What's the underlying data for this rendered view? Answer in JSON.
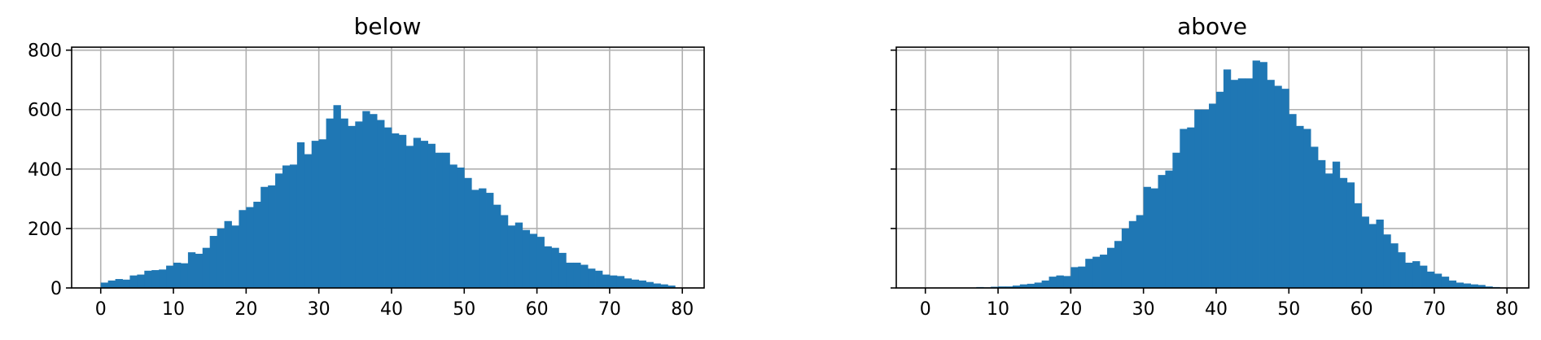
{
  "chart_data": [
    {
      "type": "bar",
      "title": "below",
      "xlabel": "",
      "ylabel": "",
      "bin_width": 1,
      "xlim": [
        -4,
        83
      ],
      "ylim": [
        0,
        810
      ],
      "xticks": [
        0,
        10,
        20,
        30,
        40,
        50,
        60,
        70,
        80
      ],
      "yticks": [
        0,
        200,
        400,
        600,
        800
      ],
      "grid": true,
      "color": "#1f77b4",
      "x": [
        0,
        1,
        2,
        3,
        4,
        5,
        6,
        7,
        8,
        9,
        10,
        11,
        12,
        13,
        14,
        15,
        16,
        17,
        18,
        19,
        20,
        21,
        22,
        23,
        24,
        25,
        26,
        27,
        28,
        29,
        30,
        31,
        32,
        33,
        34,
        35,
        36,
        37,
        38,
        39,
        40,
        41,
        42,
        43,
        44,
        45,
        46,
        47,
        48,
        49,
        50,
        51,
        52,
        53,
        54,
        55,
        56,
        57,
        58,
        59,
        60,
        61,
        62,
        63,
        64,
        65,
        66,
        67,
        68,
        69,
        70,
        71,
        72,
        73,
        74,
        75,
        76,
        77,
        78
      ],
      "values": [
        18,
        25,
        30,
        28,
        42,
        45,
        58,
        60,
        62,
        75,
        85,
        83,
        120,
        115,
        135,
        175,
        200,
        225,
        210,
        262,
        272,
        290,
        340,
        345,
        385,
        412,
        415,
        490,
        450,
        495,
        500,
        570,
        615,
        570,
        545,
        560,
        595,
        585,
        565,
        540,
        520,
        515,
        478,
        505,
        495,
        485,
        455,
        455,
        415,
        405,
        370,
        330,
        335,
        320,
        280,
        245,
        210,
        220,
        195,
        182,
        172,
        140,
        135,
        118,
        85,
        85,
        78,
        65,
        58,
        45,
        42,
        40,
        32,
        28,
        25,
        20,
        15,
        12,
        8
      ]
    },
    {
      "type": "bar",
      "title": "above",
      "xlabel": "",
      "ylabel": "",
      "bin_width": 1,
      "xlim": [
        -4,
        83
      ],
      "ylim": [
        0,
        810
      ],
      "xticks": [
        0,
        10,
        20,
        30,
        40,
        50,
        60,
        70,
        80
      ],
      "yticks": [
        0,
        200,
        400,
        600,
        800
      ],
      "grid": true,
      "color": "#1f77b4",
      "x": [
        0,
        1,
        2,
        3,
        4,
        5,
        6,
        7,
        8,
        9,
        10,
        11,
        12,
        13,
        14,
        15,
        16,
        17,
        18,
        19,
        20,
        21,
        22,
        23,
        24,
        25,
        26,
        27,
        28,
        29,
        30,
        31,
        32,
        33,
        34,
        35,
        36,
        37,
        38,
        39,
        40,
        41,
        42,
        43,
        44,
        45,
        46,
        47,
        48,
        49,
        50,
        51,
        52,
        53,
        54,
        55,
        56,
        57,
        58,
        59,
        60,
        61,
        62,
        63,
        64,
        65,
        66,
        67,
        68,
        69,
        70,
        71,
        72,
        73,
        74,
        75,
        76,
        77,
        78
      ],
      "values": [
        0,
        0,
        0,
        0,
        0,
        0,
        1,
        3,
        2,
        4,
        5,
        5,
        8,
        12,
        14,
        18,
        25,
        38,
        42,
        40,
        70,
        72,
        98,
        105,
        112,
        135,
        158,
        200,
        225,
        245,
        340,
        335,
        380,
        395,
        455,
        535,
        540,
        600,
        600,
        620,
        660,
        735,
        700,
        705,
        705,
        765,
        760,
        700,
        680,
        670,
        585,
        545,
        535,
        475,
        430,
        385,
        425,
        370,
        355,
        285,
        240,
        215,
        230,
        180,
        150,
        120,
        85,
        90,
        75,
        55,
        48,
        38,
        25,
        18,
        15,
        12,
        10,
        5,
        3
      ]
    }
  ]
}
